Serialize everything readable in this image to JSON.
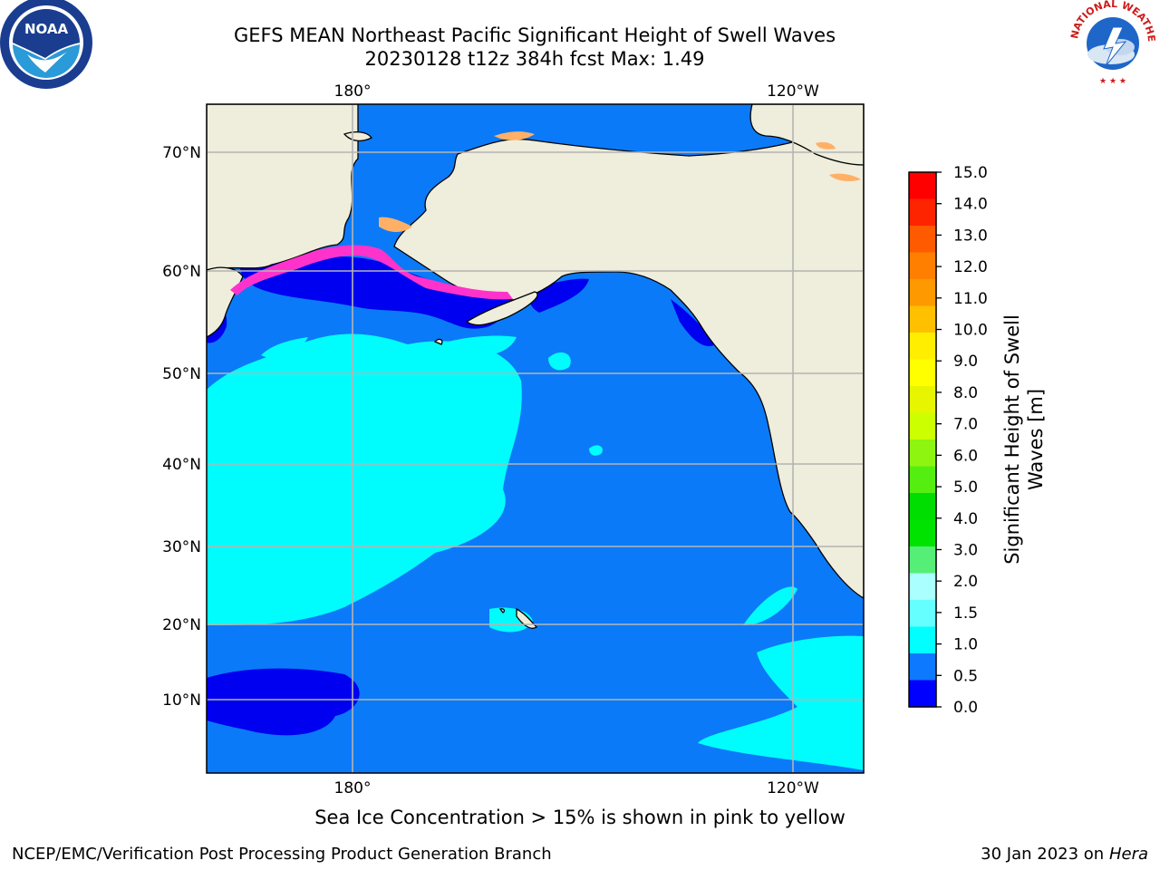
{
  "header": {
    "title_line1": "GEFS MEAN Northeast Pacific Significant Height of Swell Waves",
    "title_line2": "20230128 t12z 384h fcst   Max: 1.49"
  },
  "logos": {
    "left": "NOAA",
    "right": "NATIONAL WEATHER SERVICE"
  },
  "map": {
    "lon_labels": [
      "180°",
      "120°W"
    ],
    "lat_labels": [
      "70°N",
      "60°N",
      "50°N",
      "40°N",
      "30°N",
      "20°N",
      "10°N"
    ],
    "colors": {
      "land": "#efeddb",
      "ocean_main": "#0b7af8",
      "cyan": "#00fdfd",
      "deep_blue": "#0000f0",
      "ice_magenta": "#ff33cc",
      "ice_orange": "#ffb066",
      "grid": "#b4b4b4"
    }
  },
  "colorbar": {
    "label": "Significant Height of Swell Waves [m]",
    "label_line1": "Significant Height of Swell",
    "label_line2": "Waves [m]",
    "ticks": [
      "15.0",
      "14.0",
      "13.0",
      "12.0",
      "11.0",
      "10.0",
      "9.0",
      "8.0",
      "7.0",
      "6.0",
      "5.0",
      "4.0",
      "3.0",
      "2.0",
      "1.5",
      "1.0",
      "0.5",
      "0.0"
    ],
    "colors_top_to_bottom": [
      "#ff0000",
      "#ff2400",
      "#ff5a00",
      "#ff8000",
      "#ff9900",
      "#ffc000",
      "#ffee00",
      "#ffff00",
      "#e8f500",
      "#ccff00",
      "#8ef510",
      "#55ee11",
      "#00dd00",
      "#00e300",
      "#55ee77",
      "#aaffff",
      "#66ffff",
      "#00ffff",
      "#0d79ff",
      "#0000ff"
    ]
  },
  "caption": "Sea Ice Concentration > 15% is shown in pink to yellow",
  "footer": {
    "left": "NCEP/EMC/Verification Post Processing Product Generation Branch",
    "right_prefix": "30 Jan 2023 on ",
    "right_italic": "Hera"
  }
}
